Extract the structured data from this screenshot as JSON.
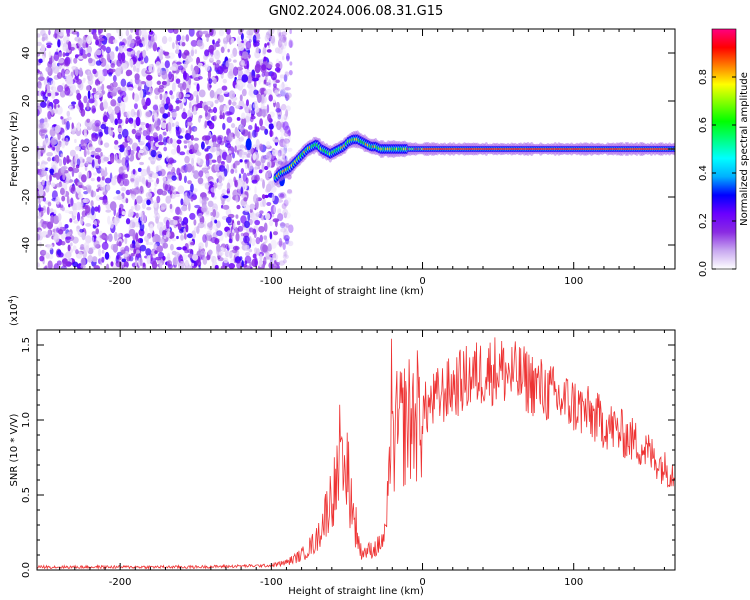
{
  "title": "GN02.2024.006.08.31.G15",
  "chart_data": [
    {
      "type": "heatmap",
      "xlabel": "Height of straight line (km)",
      "ylabel": "Frequency (Hz)",
      "xlim": [
        -255,
        167
      ],
      "ylim": [
        -50,
        50
      ],
      "xticks": [
        -200,
        -100,
        0,
        100
      ],
      "yticks": [
        -40,
        -20,
        0,
        20,
        40
      ],
      "noise_region_x": [
        -255,
        -95
      ],
      "track": {
        "x": [
          -97,
          -94,
          -91,
          -88,
          -85,
          -82,
          -79,
          -76,
          -73,
          -70,
          -67,
          -64,
          -61,
          -58,
          -55,
          -52,
          -49,
          -46,
          -43,
          -40,
          -37,
          -34,
          -31,
          -28,
          -25,
          -22,
          -19,
          -16,
          -13,
          -10,
          -7,
          -4,
          0,
          20,
          40,
          60,
          80,
          100,
          120,
          140,
          160,
          167
        ],
        "y": [
          -12,
          -10,
          -9,
          -8,
          -6,
          -4,
          -2,
          0,
          1,
          2,
          0,
          -1,
          -2,
          -1,
          0,
          1,
          3,
          4,
          4,
          3,
          2,
          1,
          1,
          0,
          0,
          0,
          0,
          0,
          0,
          0,
          0,
          0,
          0,
          0,
          0,
          0,
          0,
          0,
          0,
          0,
          0,
          0
        ]
      },
      "colorbar": {
        "label": "Normalized spectral amplitude",
        "range": [
          0,
          1
        ],
        "ticks": [
          "0.0",
          "0.2",
          "0.4",
          "0.6",
          "0.8"
        ],
        "colors": [
          "#ffffff",
          "#c8a8f0",
          "#8a2be2",
          "#6a00ff",
          "#0000ff",
          "#00b0ff",
          "#00ffff",
          "#00ff80",
          "#00ff00",
          "#80ff00",
          "#ffff00",
          "#ff8000",
          "#ff0000",
          "#ff0080"
        ]
      }
    },
    {
      "type": "line",
      "xlabel": "Height of straight line (km)",
      "ylabel": "SNR (10 * V/V)",
      "scale_label": "(x10",
      "scale_exp": "4",
      "scale_close": ")",
      "xlim": [
        -255,
        167
      ],
      "ylim": [
        0,
        1.6
      ],
      "xticks": [
        -200,
        -100,
        0,
        100
      ],
      "yticks": [
        "0.0",
        "0.5",
        "1.0",
        "1.5"
      ],
      "color": "#ee3333",
      "envelope": {
        "x": [
          -255,
          -150,
          -100,
          -90,
          -80,
          -70,
          -65,
          -60,
          -55,
          -50,
          -47,
          -45,
          -42,
          -40,
          -35,
          -30,
          -25,
          -22,
          -20,
          -18,
          -15,
          -10,
          -5,
          0,
          10,
          20,
          30,
          40,
          50,
          60,
          70,
          80,
          90,
          100,
          110,
          120,
          130,
          140,
          150,
          160,
          167
        ],
        "y": [
          0.02,
          0.02,
          0.03,
          0.05,
          0.1,
          0.2,
          0.35,
          0.5,
          0.62,
          0.6,
          0.45,
          0.25,
          0.14,
          0.12,
          0.13,
          0.15,
          0.22,
          0.55,
          0.8,
          0.9,
          0.95,
          1.0,
          1.02,
          1.05,
          1.15,
          1.22,
          1.28,
          1.32,
          1.34,
          1.3,
          1.26,
          1.2,
          1.14,
          1.1,
          1.04,
          0.98,
          0.92,
          0.86,
          0.78,
          0.68,
          0.64
        ]
      }
    }
  ]
}
